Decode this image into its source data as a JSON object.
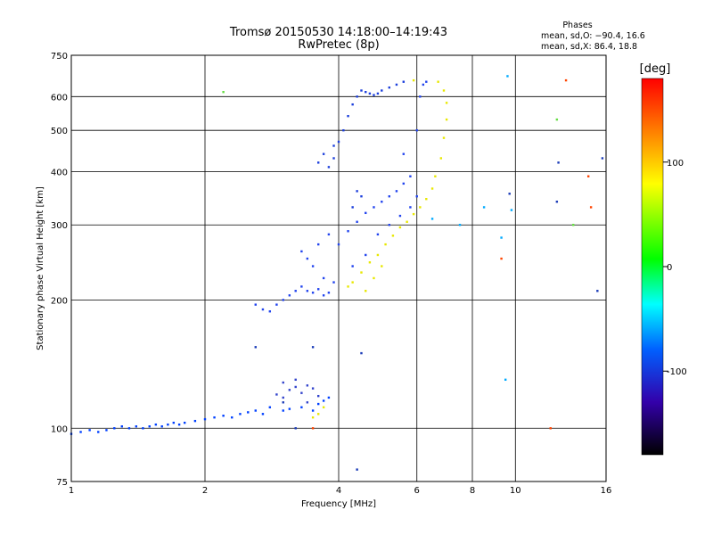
{
  "chart_data": {
    "type": "scatter",
    "title": "Tromsø 20150530 14:18:00–14:19:43",
    "subtitle": "RwPretec (8p)",
    "xlabel": "Frequency [MHz]",
    "ylabel": "Stationary phase Virtual Height [km]",
    "x_scale": "log",
    "y_scale": "log",
    "xlim": [
      1,
      16
    ],
    "ylim": [
      75,
      750
    ],
    "xticks": [
      1,
      2,
      4,
      6,
      8,
      10,
      16
    ],
    "yticks": [
      75,
      100,
      200,
      300,
      400,
      500,
      600,
      750
    ],
    "grid": true,
    "stats": {
      "heading": "Phases",
      "line_o": "mean, sd,O: −90.4, 16.6",
      "line_x": "mean, sd,X:  86.4, 18.8"
    },
    "colorbar": {
      "label": "[deg]",
      "range": [
        -180,
        180
      ],
      "ticks": [
        100,
        0,
        -100
      ]
    },
    "series": [
      {
        "color": "#0040ff",
        "points": [
          [
            1.0,
            97
          ],
          [
            1.05,
            98
          ],
          [
            1.1,
            99
          ],
          [
            1.15,
            98
          ],
          [
            1.2,
            99
          ],
          [
            1.25,
            100
          ],
          [
            1.3,
            101
          ],
          [
            1.35,
            100
          ],
          [
            1.4,
            101
          ],
          [
            1.45,
            100
          ],
          [
            1.5,
            101
          ],
          [
            1.55,
            102
          ],
          [
            1.6,
            101
          ],
          [
            1.65,
            102
          ],
          [
            1.7,
            103
          ],
          [
            1.75,
            102
          ],
          [
            1.8,
            103
          ],
          [
            1.9,
            104
          ],
          [
            2.0,
            105
          ],
          [
            2.1,
            106
          ],
          [
            2.2,
            107
          ],
          [
            2.3,
            106
          ],
          [
            2.4,
            108
          ],
          [
            2.5,
            109
          ],
          [
            2.6,
            110
          ],
          [
            2.7,
            108
          ],
          [
            2.8,
            112
          ],
          [
            3.0,
            110
          ],
          [
            3.1,
            111
          ],
          [
            3.3,
            112
          ],
          [
            3.5,
            110
          ],
          [
            3.6,
            114
          ],
          [
            3.7,
            116
          ],
          [
            3.8,
            118
          ]
        ]
      },
      {
        "color": "#3344cc",
        "points": [
          [
            2.9,
            120
          ],
          [
            3.0,
            118
          ],
          [
            3.1,
            123
          ],
          [
            3.2,
            125
          ],
          [
            3.3,
            121
          ],
          [
            3.4,
            126
          ],
          [
            3.5,
            124
          ],
          [
            3.6,
            119
          ],
          [
            3.0,
            128
          ],
          [
            3.2,
            130
          ],
          [
            3.4,
            115
          ]
        ]
      },
      {
        "color": "#2244ee",
        "points": [
          [
            2.6,
            195
          ],
          [
            2.7,
            190
          ],
          [
            2.8,
            188
          ],
          [
            2.9,
            195
          ],
          [
            3.0,
            200
          ],
          [
            3.1,
            205
          ],
          [
            3.2,
            210
          ],
          [
            3.3,
            215
          ],
          [
            3.4,
            210
          ],
          [
            3.5,
            208
          ],
          [
            3.6,
            212
          ],
          [
            3.7,
            205
          ],
          [
            3.8,
            208
          ],
          [
            3.4,
            250
          ],
          [
            3.6,
            270
          ],
          [
            3.8,
            285
          ],
          [
            4.0,
            270
          ],
          [
            4.2,
            290
          ],
          [
            4.4,
            305
          ],
          [
            4.6,
            320
          ],
          [
            4.8,
            330
          ],
          [
            5.0,
            340
          ],
          [
            5.2,
            350
          ],
          [
            5.4,
            360
          ],
          [
            5.6,
            375
          ],
          [
            5.8,
            390
          ],
          [
            5.6,
            440
          ],
          [
            6.0,
            500
          ],
          [
            6.1,
            600
          ],
          [
            6.2,
            640
          ],
          [
            6.3,
            650
          ],
          [
            3.3,
            260
          ],
          [
            3.5,
            240
          ],
          [
            3.7,
            225
          ],
          [
            3.9,
            220
          ],
          [
            4.3,
            240
          ],
          [
            4.6,
            255
          ],
          [
            4.9,
            285
          ],
          [
            5.2,
            300
          ],
          [
            5.5,
            315
          ],
          [
            5.8,
            330
          ],
          [
            6.0,
            350
          ]
        ]
      },
      {
        "color": "#1c3fdc",
        "points": [
          [
            3.8,
            410
          ],
          [
            3.9,
            430
          ],
          [
            4.0,
            470
          ],
          [
            4.1,
            500
          ],
          [
            4.2,
            540
          ],
          [
            4.3,
            575
          ],
          [
            4.4,
            600
          ],
          [
            4.5,
            620
          ],
          [
            4.6,
            615
          ],
          [
            4.7,
            610
          ],
          [
            4.8,
            605
          ],
          [
            4.9,
            610
          ],
          [
            5.0,
            620
          ],
          [
            5.2,
            630
          ],
          [
            5.4,
            640
          ],
          [
            5.6,
            650
          ],
          [
            3.6,
            420
          ],
          [
            3.7,
            440
          ],
          [
            3.9,
            460
          ],
          [
            4.4,
            360
          ],
          [
            4.5,
            350
          ],
          [
            4.3,
            330
          ]
        ]
      },
      {
        "color": "#e8e800",
        "points": [
          [
            4.3,
            220
          ],
          [
            4.5,
            232
          ],
          [
            4.7,
            245
          ],
          [
            4.9,
            255
          ],
          [
            5.1,
            270
          ],
          [
            5.3,
            283
          ],
          [
            5.5,
            296
          ],
          [
            5.7,
            305
          ],
          [
            5.9,
            318
          ],
          [
            6.1,
            330
          ],
          [
            6.3,
            345
          ],
          [
            6.5,
            365
          ],
          [
            6.6,
            390
          ],
          [
            6.8,
            430
          ],
          [
            6.9,
            480
          ],
          [
            7.0,
            530
          ],
          [
            7.0,
            580
          ],
          [
            6.9,
            620
          ],
          [
            6.7,
            650
          ],
          [
            4.2,
            215
          ],
          [
            4.6,
            210
          ],
          [
            4.8,
            225
          ],
          [
            5.0,
            240
          ],
          [
            3.5,
            106
          ],
          [
            3.6,
            108
          ],
          [
            3.7,
            112
          ],
          [
            5.9,
            655
          ]
        ]
      },
      {
        "color": "#00aaff",
        "points": [
          [
            8.5,
            330
          ],
          [
            9.3,
            280
          ],
          [
            9.6,
            670
          ],
          [
            9.5,
            130
          ],
          [
            9.8,
            325
          ],
          [
            6.5,
            310
          ],
          [
            7.5,
            300
          ]
        ]
      },
      {
        "color": "#ff4400",
        "points": [
          [
            13.0,
            655
          ],
          [
            14.6,
            390
          ],
          [
            14.8,
            330
          ],
          [
            9.3,
            250
          ],
          [
            3.5,
            100
          ],
          [
            12.0,
            100
          ]
        ]
      },
      {
        "color": "#66dd44",
        "points": [
          [
            2.2,
            615
          ],
          [
            12.4,
            530
          ],
          [
            13.5,
            300
          ]
        ]
      },
      {
        "color": "#1b3cb8",
        "points": [
          [
            12.5,
            420
          ],
          [
            15.7,
            430
          ],
          [
            15.3,
            210
          ],
          [
            12.4,
            340
          ],
          [
            9.7,
            355
          ],
          [
            4.5,
            150
          ],
          [
            3.5,
            155
          ],
          [
            4.4,
            80
          ],
          [
            2.6,
            155
          ],
          [
            3.0,
            115
          ],
          [
            3.2,
            100
          ]
        ]
      }
    ]
  }
}
